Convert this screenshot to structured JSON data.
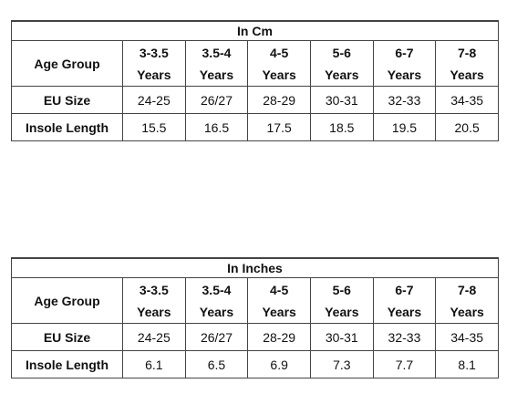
{
  "tables": [
    {
      "title": "In Cm",
      "rows": [
        [
          "Age Group",
          "3-3.5\nYears",
          "3.5-4\nYears",
          "4-5\nYears",
          "5-6\nYears",
          "6-7\nYears",
          "7-8\nYears"
        ],
        [
          "EU Size",
          "24-25",
          "26/27",
          "28-29",
          "30-31",
          "32-33",
          "34-35"
        ],
        [
          "Insole Length",
          "15.5",
          "16.5",
          "17.5",
          "18.5",
          "19.5",
          "20.5"
        ]
      ]
    },
    {
      "title": "In Inches",
      "rows": [
        [
          "Age Group",
          "3-3.5\nYears",
          "3.5-4\nYears",
          "4-5\nYears",
          "5-6\nYears",
          "6-7\nYears",
          "7-8\nYears"
        ],
        [
          "EU Size",
          "24-25",
          "26/27",
          "28-29",
          "30-31",
          "32-33",
          "34-35"
        ],
        [
          "Insole Length",
          "6.1",
          "6.5",
          "6.9",
          "7.3",
          "7.7",
          "8.1"
        ]
      ]
    }
  ]
}
